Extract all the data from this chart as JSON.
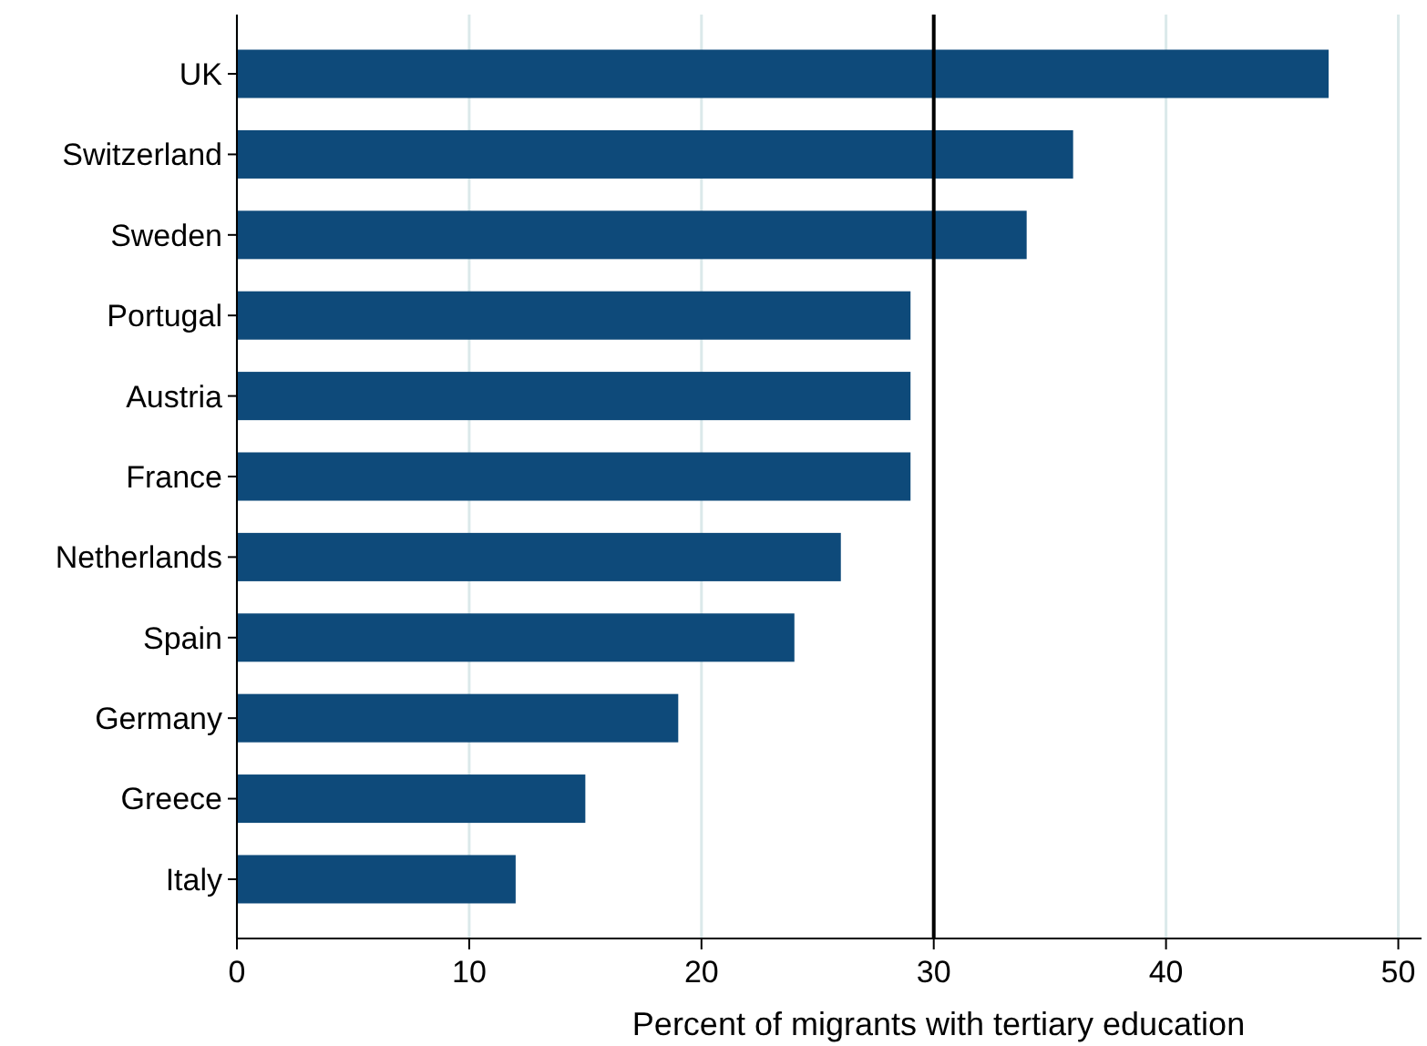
{
  "chart_data": {
    "type": "bar",
    "orientation": "horizontal",
    "xlabel": "Percent of migrants with tertiary education",
    "categories": [
      "UK",
      "Switzerland",
      "Sweden",
      "Portugal",
      "Austria",
      "France",
      "Netherlands",
      "Spain",
      "Germany",
      "Greece",
      "Italy"
    ],
    "values": [
      47,
      36,
      34,
      29,
      29,
      29,
      26,
      24,
      19,
      15,
      12
    ],
    "color": "#0e4a7a",
    "xlim": [
      0,
      51
    ],
    "xticks": [
      0,
      10,
      20,
      30,
      40,
      50
    ],
    "grid": "x",
    "ref_lines": [
      {
        "axis": "x",
        "value": 30,
        "color": "#000000"
      }
    ]
  }
}
